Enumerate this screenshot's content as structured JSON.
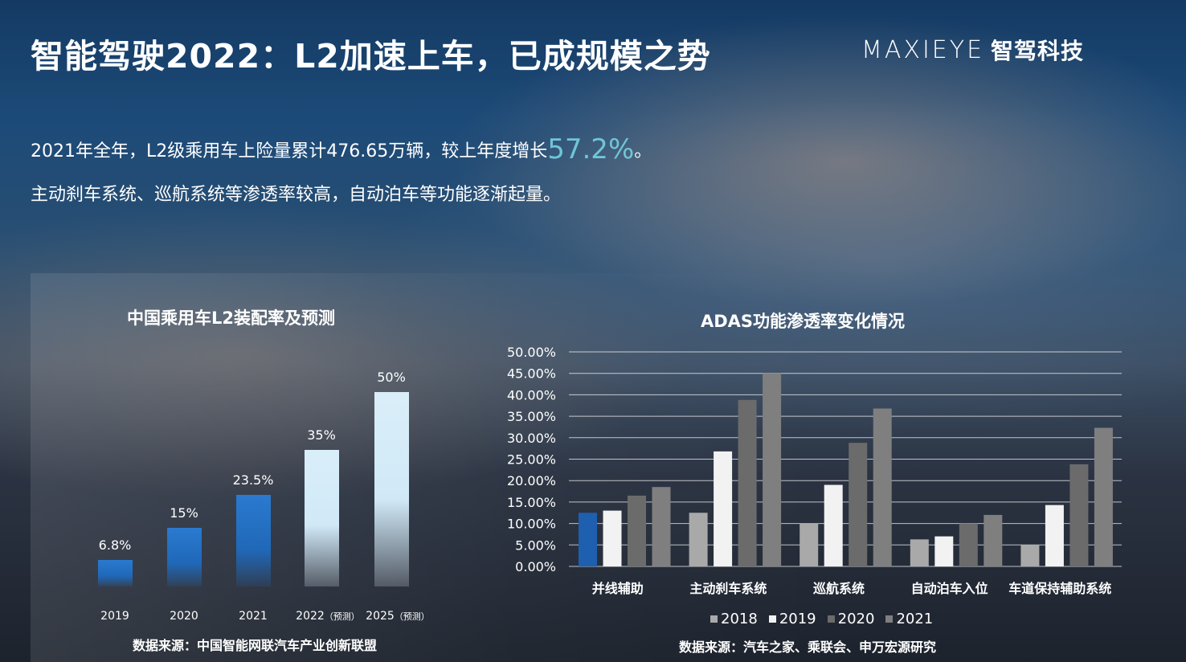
{
  "header": {
    "title": "智能驾驶2022：L2加速上车，已成规模之势",
    "logo_en": "MAXIEYE",
    "logo_cn": "智驾科技"
  },
  "summary": {
    "line1_pre": "2021年全年，L2级乘用车上险量累计476.65万辆，较上年度增长",
    "line1_highlight": "57.2%",
    "line1_post": "。",
    "line2": "主动刹车系统、巡航系统等渗透率较高，自动泊车等功能逐渐起量。"
  },
  "colors": {
    "highlight": "#6fc6d6",
    "bar_blue": "#2068b8",
    "bar_light": "#d6ecf8"
  },
  "chart_data": [
    {
      "type": "bar",
      "title": "中国乘用车L2装配率及预测",
      "categories": [
        "2019",
        "2020",
        "2021",
        "2022",
        "2025"
      ],
      "category_notes": [
        "",
        "",
        "",
        "（预测）",
        "（预测）"
      ],
      "values": [
        6.8,
        15,
        23.5,
        35,
        50
      ],
      "value_labels": [
        "6.8%",
        "15%",
        "23.5%",
        "35%",
        "50%"
      ],
      "source": "数据来源：中国智能网联汽车产业创新联盟"
    },
    {
      "type": "bar",
      "title": "ADAS功能渗透率变化情况",
      "categories": [
        "并线辅助",
        "主动刹车系统",
        "巡航系统",
        "自动泊车入位",
        "车道保持辅助系统"
      ],
      "ylim": [
        0,
        50
      ],
      "yticks": [
        "0.00%",
        "5.00%",
        "10.00%",
        "15.00%",
        "20.00%",
        "25.00%",
        "30.00%",
        "35.00%",
        "40.00%",
        "45.00%",
        "50.00%"
      ],
      "grid": true,
      "legend_position": "bottom",
      "series": [
        {
          "name": "2018",
          "values": [
            12.5,
            12.5,
            10.0,
            6.3,
            5.0
          ]
        },
        {
          "name": "2019",
          "values": [
            13.0,
            26.8,
            19.0,
            7.0,
            14.3
          ]
        },
        {
          "name": "2020",
          "values": [
            16.5,
            38.8,
            28.8,
            10.0,
            23.8
          ]
        },
        {
          "name": "2021",
          "values": [
            18.5,
            45.0,
            36.8,
            12.0,
            32.3
          ]
        }
      ],
      "series_colors": [
        "#a9a9a9",
        "#f2f2f2",
        "#6b6b6b",
        "#7f7f7f"
      ],
      "highlight": {
        "series": 0,
        "category": 0,
        "color": "#1f5fb0"
      },
      "source": "数据来源：汽车之家、乘联会、申万宏源研究"
    }
  ]
}
